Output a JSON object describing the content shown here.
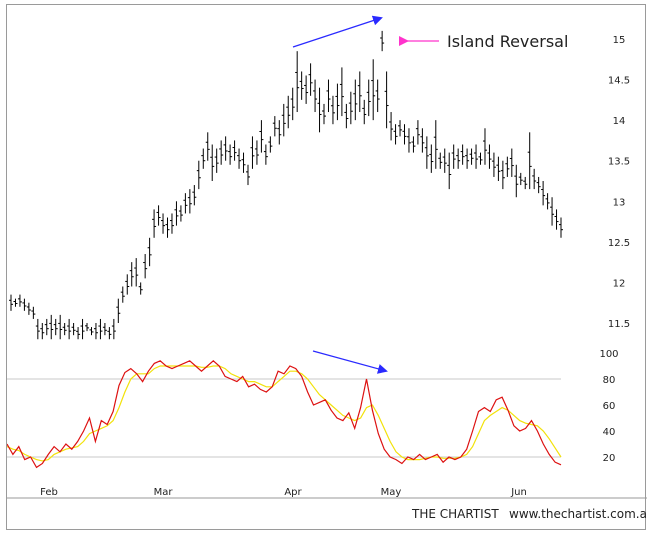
{
  "chart_data": [
    {
      "type": "bar",
      "subtype": "ohlc-price",
      "annotation": "Island Reversal",
      "y_ticks": [
        "15",
        "14.5",
        "14",
        "13.5",
        "13",
        "12.5",
        "12",
        "11.5"
      ],
      "ylim": [
        11.2,
        15.25
      ],
      "trend_arrow_color": "#2a2aff",
      "pointer_arrow_color": "#ff33cc",
      "bar_color": "#000000",
      "bars": [
        [
          11.85,
          11.65
        ],
        [
          11.8,
          11.7
        ],
        [
          11.85,
          11.7
        ],
        [
          11.8,
          11.65
        ],
        [
          11.75,
          11.6
        ],
        [
          11.7,
          11.55
        ],
        [
          11.55,
          11.3
        ],
        [
          11.5,
          11.3
        ],
        [
          11.55,
          11.35
        ],
        [
          11.6,
          11.3
        ],
        [
          11.55,
          11.35
        ],
        [
          11.6,
          11.3
        ],
        [
          11.5,
          11.35
        ],
        [
          11.55,
          11.3
        ],
        [
          11.5,
          11.35
        ],
        [
          11.45,
          11.3
        ],
        [
          11.55,
          11.3
        ],
        [
          11.5,
          11.4
        ],
        [
          11.45,
          11.35
        ],
        [
          11.5,
          11.3
        ],
        [
          11.55,
          11.3
        ],
        [
          11.5,
          11.35
        ],
        [
          11.45,
          11.3
        ],
        [
          11.55,
          11.3
        ],
        [
          11.8,
          11.5
        ],
        [
          11.95,
          11.75
        ],
        [
          12.1,
          11.85
        ],
        [
          12.25,
          11.95
        ],
        [
          12.3,
          11.95
        ],
        [
          12.0,
          11.85
        ],
        [
          12.35,
          12.05
        ],
        [
          12.55,
          12.2
        ],
        [
          12.9,
          12.55
        ],
        [
          12.95,
          12.7
        ],
        [
          12.85,
          12.6
        ],
        [
          12.8,
          12.55
        ],
        [
          12.85,
          12.6
        ],
        [
          13.0,
          12.7
        ],
        [
          12.95,
          12.75
        ],
        [
          13.1,
          12.85
        ],
        [
          13.15,
          12.85
        ],
        [
          13.2,
          12.95
        ],
        [
          13.5,
          13.15
        ],
        [
          13.65,
          13.4
        ],
        [
          13.85,
          13.5
        ],
        [
          13.7,
          13.25
        ],
        [
          13.65,
          13.35
        ],
        [
          13.75,
          13.45
        ],
        [
          13.8,
          13.5
        ],
        [
          13.7,
          13.45
        ],
        [
          13.75,
          13.5
        ],
        [
          13.65,
          13.4
        ],
        [
          13.6,
          13.35
        ],
        [
          13.45,
          13.2
        ],
        [
          13.8,
          13.4
        ],
        [
          13.75,
          13.45
        ],
        [
          14.0,
          13.6
        ],
        [
          13.7,
          13.45
        ],
        [
          13.8,
          13.6
        ],
        [
          14.05,
          13.8
        ],
        [
          14.0,
          13.7
        ],
        [
          14.2,
          13.8
        ],
        [
          14.3,
          13.9
        ],
        [
          14.4,
          14.0
        ],
        [
          14.85,
          14.1
        ],
        [
          14.6,
          14.25
        ],
        [
          14.55,
          14.2
        ],
        [
          14.7,
          14.3
        ],
        [
          14.5,
          14.1
        ],
        [
          14.4,
          13.85
        ],
        [
          14.2,
          13.95
        ],
        [
          14.5,
          14.1
        ],
        [
          14.3,
          13.95
        ],
        [
          14.45,
          14.0
        ],
        [
          14.65,
          14.05
        ],
        [
          14.2,
          13.9
        ],
        [
          14.35,
          13.95
        ],
        [
          14.5,
          14.0
        ],
        [
          14.6,
          14.1
        ],
        [
          14.25,
          13.95
        ],
        [
          14.5,
          14.05
        ],
        [
          14.75,
          14.0
        ],
        [
          14.5,
          14.1
        ],
        [
          15.1,
          14.85
        ],
        [
          14.6,
          13.9
        ],
        [
          14.1,
          13.75
        ],
        [
          13.95,
          13.7
        ],
        [
          14.0,
          13.8
        ],
        [
          13.95,
          13.7
        ],
        [
          13.9,
          13.6
        ],
        [
          13.8,
          13.6
        ],
        [
          14.0,
          13.7
        ],
        [
          13.9,
          13.6
        ],
        [
          13.8,
          13.4
        ],
        [
          13.7,
          13.35
        ],
        [
          14.0,
          13.4
        ],
        [
          13.6,
          13.4
        ],
        [
          13.65,
          13.35
        ],
        [
          13.6,
          13.15
        ],
        [
          13.7,
          13.4
        ],
        [
          13.65,
          13.4
        ],
        [
          13.7,
          13.45
        ],
        [
          13.65,
          13.4
        ],
        [
          13.65,
          13.45
        ],
        [
          13.7,
          13.4
        ],
        [
          13.6,
          13.45
        ],
        [
          13.9,
          13.45
        ],
        [
          13.7,
          13.4
        ],
        [
          13.6,
          13.3
        ],
        [
          13.55,
          13.25
        ],
        [
          13.5,
          13.15
        ],
        [
          13.55,
          13.3
        ],
        [
          13.65,
          13.3
        ],
        [
          13.45,
          13.05
        ],
        [
          13.35,
          13.2
        ],
        [
          13.3,
          13.15
        ],
        [
          13.85,
          13.15
        ],
        [
          13.4,
          13.15
        ],
        [
          13.3,
          13.1
        ],
        [
          13.25,
          12.95
        ],
        [
          13.1,
          12.9
        ],
        [
          13.05,
          12.7
        ],
        [
          12.9,
          12.65
        ],
        [
          12.8,
          12.55
        ]
      ]
    },
    {
      "type": "line",
      "subtype": "stochastic-oscillator",
      "y_ticks": [
        "100",
        "80",
        "60",
        "40",
        "20"
      ],
      "ylim": [
        0,
        100
      ],
      "ref_lines": [
        80,
        20
      ],
      "month_labels": [
        "Feb",
        "Mar",
        "Apr",
        "May",
        "Jun"
      ],
      "series": [
        {
          "color": "#dd1111",
          "values": [
            30,
            22,
            28,
            18,
            20,
            12,
            15,
            22,
            28,
            24,
            30,
            26,
            32,
            40,
            50,
            32,
            48,
            45,
            55,
            75,
            85,
            88,
            84,
            78,
            86,
            92,
            94,
            90,
            88,
            90,
            92,
            94,
            90,
            86,
            90,
            94,
            90,
            82,
            80,
            78,
            82,
            74,
            76,
            72,
            70,
            74,
            86,
            84,
            90,
            88,
            82,
            70,
            60,
            62,
            64,
            56,
            50,
            48,
            54,
            42,
            58,
            80,
            56,
            38,
            26,
            20,
            18,
            15,
            20,
            18,
            22,
            18,
            20,
            22,
            16,
            20,
            18,
            20,
            26,
            40,
            55,
            58,
            55,
            64,
            66,
            56,
            44,
            40,
            42,
            48,
            40,
            30,
            22,
            16,
            14
          ]
        },
        {
          "color": "#f2e20a",
          "values": [
            28,
            26,
            25,
            22,
            20,
            18,
            17,
            18,
            22,
            24,
            26,
            27,
            28,
            32,
            38,
            40,
            42,
            44,
            48,
            58,
            70,
            80,
            84,
            84,
            84,
            88,
            90,
            90,
            90,
            90,
            90,
            90,
            90,
            89,
            89,
            90,
            90,
            88,
            84,
            82,
            80,
            78,
            78,
            76,
            74,
            74,
            78,
            82,
            86,
            86,
            84,
            80,
            74,
            68,
            64,
            60,
            56,
            52,
            50,
            48,
            50,
            58,
            60,
            52,
            42,
            32,
            24,
            20,
            18,
            18,
            18,
            19,
            20,
            20,
            19,
            19,
            19,
            20,
            22,
            28,
            38,
            48,
            52,
            55,
            58,
            56,
            52,
            48,
            46,
            45,
            44,
            40,
            34,
            27,
            20
          ]
        }
      ]
    }
  ],
  "footer": {
    "brand": "THE CHARTIST",
    "url": "www.thechartist.com.au"
  }
}
